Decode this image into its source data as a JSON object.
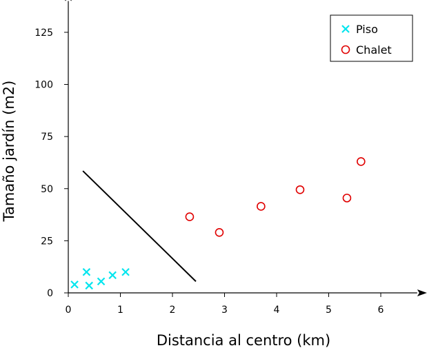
{
  "chart_data": {
    "type": "scatter",
    "title": "",
    "xlabel": "Distancia al centro (km)",
    "ylabel": "Tamaño jardín (m2)",
    "xlim": [
      0,
      6.7
    ],
    "ylim": [
      0,
      140
    ],
    "x_ticks": [
      "0",
      "1",
      "2",
      "3",
      "4",
      "5",
      "6"
    ],
    "y_ticks": [
      "0",
      "25",
      "50",
      "75",
      "100",
      "125"
    ],
    "grid": false,
    "legend_position": "top-right",
    "series": [
      {
        "name": "Piso",
        "marker": "x",
        "color": "#00e5ee",
        "points": [
          {
            "x": 0.12,
            "y": 4
          },
          {
            "x": 0.35,
            "y": 10
          },
          {
            "x": 0.4,
            "y": 3.5
          },
          {
            "x": 0.63,
            "y": 5.5
          },
          {
            "x": 0.85,
            "y": 8.5
          },
          {
            "x": 1.1,
            "y": 10
          }
        ]
      },
      {
        "name": "Chalet",
        "marker": "circle",
        "color": "#e00000",
        "points": [
          {
            "x": 2.33,
            "y": 36.5
          },
          {
            "x": 2.9,
            "y": 29
          },
          {
            "x": 3.7,
            "y": 41.5
          },
          {
            "x": 4.45,
            "y": 49.5
          },
          {
            "x": 5.35,
            "y": 45.5
          },
          {
            "x": 5.62,
            "y": 63
          }
        ]
      }
    ],
    "decision_line": {
      "x": [
        0.28,
        2.45
      ],
      "y": [
        58.5,
        5.5
      ],
      "color": "#000000"
    }
  }
}
